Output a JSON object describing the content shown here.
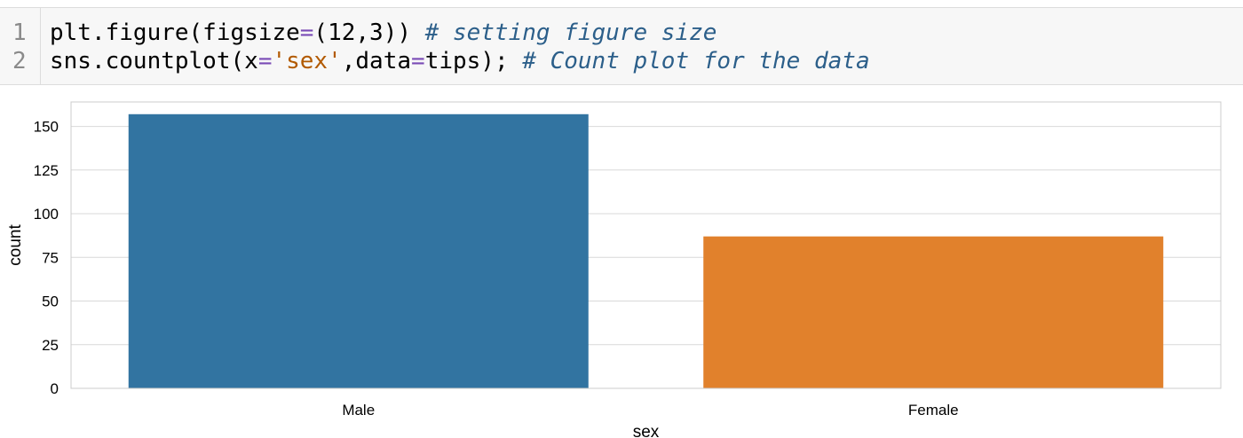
{
  "code_cell": {
    "lines": [
      {
        "number": "1",
        "code": "plt.figure(figsize",
        "op": "=",
        "code2": "(12,3))",
        "comment": " # setting figure size"
      },
      {
        "number": "2",
        "code": "sns.countplot(x",
        "op": "=",
        "str": "'sex'",
        "code2": ",data",
        "op2": "=",
        "code3": "tips);",
        "comment": " # Count plot for the data"
      }
    ]
  },
  "chart_data": {
    "type": "bar",
    "categories": [
      "Male",
      "Female"
    ],
    "values": [
      157,
      87
    ],
    "xlabel": "sex",
    "ylabel": "count",
    "ylim": [
      0,
      164
    ],
    "yticks": [
      0,
      25,
      50,
      75,
      100,
      125,
      150
    ],
    "grid": true,
    "colors": [
      "#3274a1",
      "#e1812c"
    ]
  }
}
